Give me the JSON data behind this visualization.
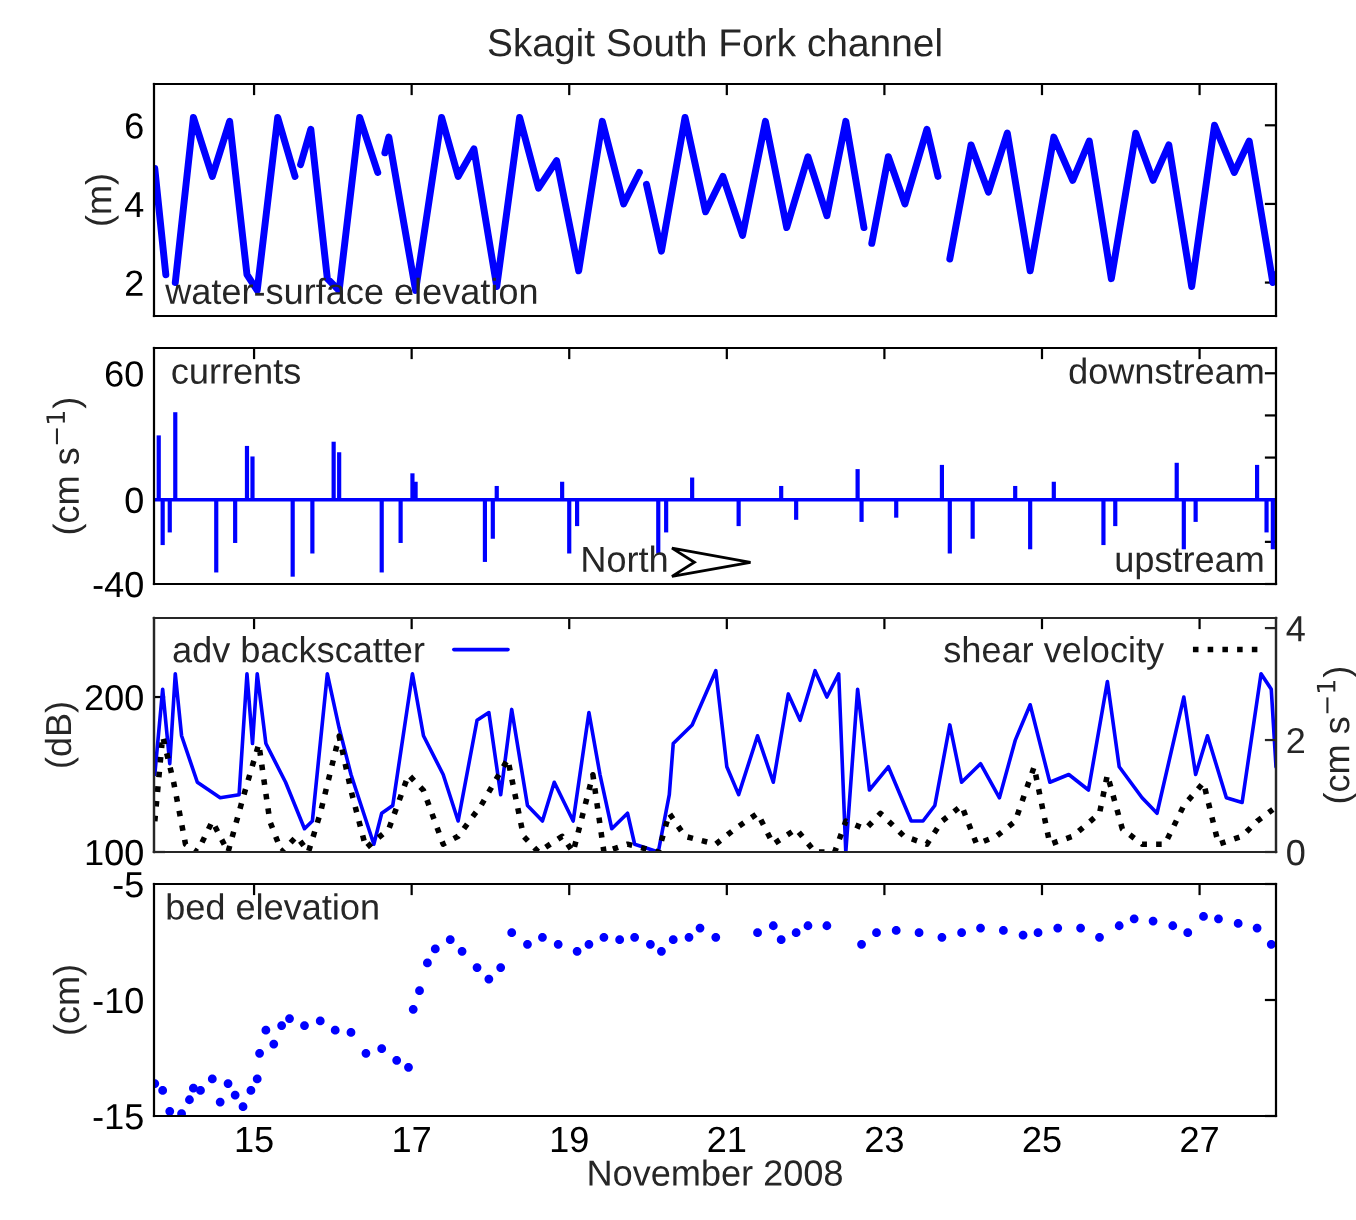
{
  "chart_data": [
    {
      "type": "line",
      "title": "Skagit South Fork channel",
      "ylabel": "(m)",
      "annotations": [
        "water-surface elevation"
      ],
      "xlim": [
        13.73,
        27.97
      ],
      "xticks": [
        15,
        17,
        19,
        21,
        23,
        25,
        27
      ],
      "ylim": [
        1.15,
        7.05
      ],
      "yticks": [
        2,
        4,
        6
      ],
      "tick_labels": "y",
      "line_style": "solid",
      "series": [
        {
          "color": "#0000ff",
          "x": [
            13.74,
            13.88,
            13.94,
            14.0,
            14.23,
            14.47,
            14.69,
            14.91,
            15.04,
            15.3,
            15.52,
            15.55,
            15.59,
            15.72,
            15.93,
            16.08,
            16.34,
            16.57,
            16.62,
            16.66,
            16.71,
            17.05,
            17.38,
            17.59,
            17.79,
            18.08,
            18.37,
            18.61,
            18.84,
            19.12,
            19.42,
            19.69,
            19.89,
            19.93,
            19.98,
            20.17,
            20.47,
            20.73,
            20.95,
            21.2,
            21.49,
            21.76,
            22.03,
            22.27,
            22.51,
            22.74,
            22.79,
            22.84,
            23.05,
            23.26,
            23.54,
            23.68,
            23.7,
            23.83,
            24.1,
            24.32,
            24.56,
            24.85,
            25.15,
            25.39,
            25.6,
            25.88,
            26.19,
            26.41,
            26.61,
            26.9,
            27.19,
            27.44,
            27.63,
            27.93,
            27.97
          ],
          "values": [
            4.9,
            2.2,
            null,
            2.0,
            6.2,
            4.7,
            6.1,
            2.2,
            1.8,
            6.2,
            4.7,
            null,
            5.0,
            5.9,
            2.1,
            1.8,
            6.2,
            4.8,
            null,
            5.3,
            5.7,
            1.8,
            6.2,
            4.7,
            5.4,
            1.9,
            6.2,
            4.4,
            5.1,
            2.3,
            6.1,
            4.0,
            4.8,
            null,
            4.5,
            2.8,
            6.2,
            3.8,
            4.7,
            3.2,
            6.1,
            3.4,
            5.2,
            3.7,
            6.1,
            3.4,
            null,
            3.0,
            5.2,
            4.0,
            5.9,
            4.7,
            null,
            2.6,
            5.5,
            4.3,
            5.8,
            2.3,
            5.7,
            4.6,
            5.6,
            2.1,
            5.8,
            4.6,
            5.5,
            1.9,
            6.0,
            4.8,
            5.6,
            2.0,
            2.2
          ]
        }
      ]
    },
    {
      "type": "bar",
      "ylabel": "(cm s$^{−1}$)",
      "annotations": [
        "currents",
        "downstream",
        "upstream",
        "North"
      ],
      "xlim": [
        13.73,
        27.97
      ],
      "xticks": [
        15,
        17,
        19,
        21,
        23,
        25,
        27
      ],
      "ylim": [
        -40,
        72
      ],
      "yticks": [
        -40,
        {
          "value": -20,
          "label": null
        },
        0,
        {
          "value": 20,
          "label": null
        },
        {
          "value": 40,
          "label": null
        },
        60
      ],
      "tick_labels": "y",
      "color": "#0000ff",
      "ref_lines": [
        {
          "axis": "y",
          "value": 0,
          "color": "#0000ff"
        }
      ],
      "x": [
        13.79,
        13.84,
        13.93,
        14.0,
        14.52,
        14.76,
        14.91,
        14.98,
        15.49,
        15.74,
        16.01,
        16.08,
        16.62,
        16.86,
        17.01,
        17.05,
        17.93,
        18.03,
        18.08,
        18.91,
        19.0,
        19.1,
        20.13,
        20.23,
        20.56,
        21.15,
        21.69,
        21.88,
        22.66,
        22.71,
        23.15,
        23.73,
        23.83,
        24.12,
        24.66,
        24.85,
        25.15,
        25.78,
        25.93,
        26.71,
        26.8,
        26.95,
        27.73,
        27.85,
        27.93
      ],
      "values": [
        30,
        -21,
        -15,
        41,
        -34,
        -20,
        25,
        20,
        -36,
        -25,
        27,
        22,
        -34,
        -20,
        12,
        8,
        -29,
        -18,
        6,
        8,
        -25,
        -12,
        -25,
        -15,
        10,
        -12,
        6,
        -9,
        14,
        -10,
        -8,
        16,
        -25,
        -18,
        6,
        -23,
        8,
        -21,
        -12,
        17,
        -23,
        -10,
        16,
        -15,
        -23
      ]
    },
    {
      "type": "line",
      "ylabel": "(dB)",
      "y2label": "(cm s$^{−1}$)",
      "xlim": [
        13.73,
        27.97
      ],
      "xticks": [
        15,
        17,
        19,
        21,
        23,
        25,
        27
      ],
      "ylim": [
        100,
        251
      ],
      "yticks": [
        100,
        200
      ],
      "y2lim": [
        0,
        4.18
      ],
      "y2ticks": [
        0,
        2,
        4
      ],
      "tick_labels": "y",
      "legend": "top",
      "series": [
        {
          "name": "adv backscatter",
          "color": "#0000ff",
          "line_style": "solid",
          "x": [
            13.74,
            13.84,
            13.93,
            14.0,
            14.08,
            14.28,
            14.57,
            14.81,
            14.91,
            14.98,
            15.04,
            15.15,
            15.4,
            15.64,
            15.74,
            15.93,
            16.08,
            16.23,
            16.52,
            16.62,
            16.76,
            17.01,
            17.15,
            17.4,
            17.59,
            17.83,
            17.98,
            18.13,
            18.27,
            18.47,
            18.66,
            18.81,
            19.05,
            19.25,
            19.39,
            19.54,
            19.74,
            19.83,
            20.13,
            20.27,
            20.32,
            20.56,
            20.86,
            21.0,
            21.15,
            21.39,
            21.59,
            21.78,
            21.93,
            22.12,
            22.27,
            22.42,
            22.51,
            22.66,
            22.81,
            23.05,
            23.34,
            23.49,
            23.64,
            23.83,
            23.98,
            24.22,
            24.46,
            24.66,
            24.85,
            25.1,
            25.34,
            25.59,
            25.83,
            25.98,
            26.27,
            26.46,
            26.8,
            26.95,
            27.1,
            27.34,
            27.54,
            27.78,
            27.91,
            27.97
          ],
          "values": [
            150,
            205,
            157,
            215,
            175,
            145,
            135,
            137,
            215,
            170,
            215,
            170,
            145,
            115,
            120,
            215,
            180,
            150,
            105,
            125,
            130,
            215,
            175,
            150,
            120,
            185,
            190,
            137,
            192,
            130,
            120,
            145,
            120,
            190,
            150,
            115,
            125,
            105,
            100,
            137,
            170,
            182,
            217,
            155,
            137,
            175,
            145,
            202,
            185,
            217,
            200,
            215,
            100,
            205,
            140,
            155,
            120,
            120,
            130,
            182,
            145,
            157,
            135,
            172,
            195,
            145,
            150,
            140,
            210,
            155,
            135,
            125,
            200,
            150,
            175,
            135,
            132,
            215,
            205,
            155
          ]
        },
        {
          "name": "shear velocity",
          "color": "#000000",
          "axis": "y2",
          "line_style": "dotted",
          "x": [
            13.74,
            13.84,
            13.98,
            14.13,
            14.28,
            14.47,
            14.67,
            14.86,
            15.06,
            15.2,
            15.35,
            15.54,
            15.69,
            15.84,
            16.08,
            16.23,
            16.42,
            16.71,
            16.96,
            17.15,
            17.4,
            17.59,
            17.88,
            18.22,
            18.42,
            18.61,
            18.91,
            19.05,
            19.3,
            19.44,
            19.74,
            20.13,
            20.27,
            20.47,
            20.86,
            21.1,
            21.39,
            21.59,
            21.88,
            22.12,
            22.37,
            22.51,
            22.76,
            22.95,
            23.25,
            23.54,
            23.73,
            23.98,
            24.17,
            24.42,
            24.66,
            24.9,
            25.1,
            25.39,
            25.73,
            25.83,
            26.02,
            26.27,
            26.56,
            26.8,
            27.05,
            27.24,
            27.54,
            27.73,
            27.93
          ],
          "values": [
            0.55,
            2.07,
            1.24,
            0.14,
            0,
            0.55,
            0,
            0.97,
            1.93,
            0.55,
            0,
            0.28,
            0,
            0.69,
            2.07,
            1.1,
            0.07,
            0.41,
            1.38,
            1.1,
            0.14,
            0.28,
            0.83,
            1.66,
            0.28,
            0,
            0.28,
            0,
            1.38,
            0,
            0.14,
            0,
            0.69,
            0.28,
            0.14,
            0.41,
            0.69,
            0.14,
            0.41,
            0,
            0,
            0.55,
            0.41,
            0.69,
            0.28,
            0.14,
            0.55,
            0.83,
            0.14,
            0.28,
            0.55,
            1.52,
            0.14,
            0.28,
            0.69,
            1.38,
            0.41,
            0.14,
            0.14,
            0.83,
            1.24,
            0.14,
            0.28,
            0.55,
            0.76
          ]
        }
      ]
    },
    {
      "type": "scatter",
      "ylabel": "(cm)",
      "xlabel": "November 2008",
      "annotations": [
        "bed elevation"
      ],
      "xlim": [
        13.73,
        27.97
      ],
      "xticks": [
        15,
        17,
        19,
        21,
        23,
        25,
        27
      ],
      "ylim": [
        -15,
        -5
      ],
      "yticks": [
        -15,
        -10,
        -5
      ],
      "marker": "circle",
      "color": "#0000ff",
      "x": [
        13.74,
        13.84,
        13.93,
        14.08,
        14.18,
        14.23,
        14.32,
        14.47,
        14.57,
        14.67,
        14.76,
        14.86,
        14.96,
        15.04,
        15.07,
        15.15,
        15.25,
        15.35,
        15.45,
        15.64,
        15.84,
        16.03,
        16.23,
        16.42,
        16.62,
        16.81,
        16.96,
        17.02,
        17.1,
        17.2,
        17.3,
        17.49,
        17.64,
        17.83,
        17.98,
        18.13,
        18.27,
        18.47,
        18.66,
        18.86,
        19.1,
        19.25,
        19.44,
        19.64,
        19.83,
        20.03,
        20.17,
        20.32,
        20.52,
        20.66,
        20.86,
        21.39,
        21.59,
        21.69,
        21.88,
        22.03,
        22.27,
        22.71,
        22.9,
        23.15,
        23.44,
        23.73,
        23.98,
        24.22,
        24.51,
        24.76,
        24.95,
        25.2,
        25.49,
        25.73,
        25.98,
        26.17,
        26.41,
        26.66,
        26.85,
        27.05,
        27.24,
        27.49,
        27.73,
        27.91
      ],
      "values": [
        -13.6,
        -13.9,
        -14.8,
        -14.9,
        -14.3,
        -13.8,
        -13.9,
        -13.4,
        -14.4,
        -13.6,
        -14.1,
        -14.6,
        -13.9,
        -13.4,
        -12.3,
        -11.3,
        -11.9,
        -11.1,
        -10.8,
        -11.1,
        -10.9,
        -11.3,
        -11.4,
        -12.3,
        -12.1,
        -12.6,
        -12.9,
        -10.4,
        -9.6,
        -8.4,
        -7.8,
        -7.4,
        -7.9,
        -8.6,
        -9.1,
        -8.6,
        -7.1,
        -7.6,
        -7.3,
        -7.6,
        -7.9,
        -7.6,
        -7.3,
        -7.4,
        -7.3,
        -7.6,
        -7.9,
        -7.4,
        -7.3,
        -6.9,
        -7.3,
        -7.1,
        -6.8,
        -7.4,
        -7.1,
        -6.8,
        -6.8,
        -7.6,
        -7.1,
        -7.0,
        -7.1,
        -7.3,
        -7.1,
        -6.9,
        -7.0,
        -7.2,
        -7.1,
        -6.9,
        -6.9,
        -7.3,
        -6.8,
        -6.5,
        -6.6,
        -6.8,
        -7.1,
        -6.4,
        -6.5,
        -6.7,
        -6.9,
        -7.6
      ]
    }
  ]
}
